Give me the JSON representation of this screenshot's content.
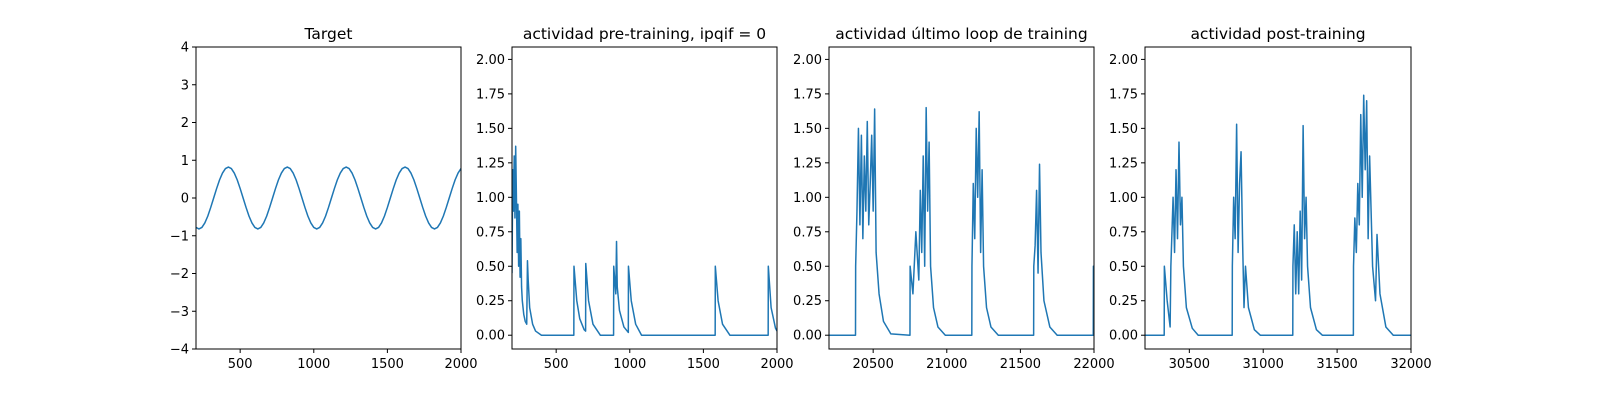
{
  "chart_data": [
    {
      "type": "line",
      "title": "Target",
      "color": "#1f77b4",
      "x": [
        200,
        220,
        240,
        260,
        280,
        300,
        320,
        340,
        360,
        380,
        400,
        420,
        440,
        460,
        480,
        500,
        520,
        540,
        560,
        580,
        600,
        620,
        640,
        660,
        680,
        700,
        720,
        740,
        760,
        780,
        800,
        820,
        840,
        860,
        880,
        900,
        920,
        940,
        960,
        980,
        1000,
        1020,
        1040,
        1060,
        1080,
        1100,
        1120,
        1140,
        1160,
        1180,
        1200,
        1220,
        1240,
        1260,
        1280,
        1300,
        1320,
        1340,
        1360,
        1380,
        1400,
        1420,
        1440,
        1460,
        1480,
        1500,
        1520,
        1540,
        1560,
        1580,
        1600,
        1620,
        1640,
        1660,
        1680,
        1700,
        1720,
        1740,
        1760,
        1780,
        1800,
        1820,
        1840,
        1860,
        1880,
        1900,
        1920,
        1940,
        1960,
        1980,
        2000
      ],
      "values": [
        -0.78,
        -0.82,
        -0.78,
        -0.66,
        -0.48,
        -0.25,
        0,
        0.25,
        0.48,
        0.66,
        0.78,
        0.82,
        0.78,
        0.66,
        0.48,
        0.25,
        0,
        -0.25,
        -0.48,
        -0.66,
        -0.78,
        -0.82,
        -0.78,
        -0.66,
        -0.48,
        -0.25,
        0,
        0.25,
        0.48,
        0.66,
        0.78,
        0.82,
        0.78,
        0.66,
        0.48,
        0.25,
        0,
        -0.25,
        -0.48,
        -0.66,
        -0.78,
        -0.82,
        -0.78,
        -0.66,
        -0.48,
        -0.25,
        0,
        0.25,
        0.48,
        0.66,
        0.78,
        0.82,
        0.78,
        0.66,
        0.48,
        0.25,
        0,
        -0.25,
        -0.48,
        -0.66,
        -0.78,
        -0.82,
        -0.78,
        -0.66,
        -0.48,
        -0.25,
        0,
        0.25,
        0.48,
        0.66,
        0.78,
        0.82,
        0.78,
        0.66,
        0.48,
        0.25,
        0,
        -0.25,
        -0.48,
        -0.66,
        -0.78,
        -0.82,
        -0.78,
        -0.66,
        -0.48,
        -0.25,
        0,
        0.25,
        0.48,
        0.66,
        0.78
      ],
      "xlim": [
        200,
        2000
      ],
      "xticks": [
        500,
        1000,
        1500,
        2000
      ],
      "ylim": [
        -4,
        4
      ],
      "yticks": [
        {
          "value": -4,
          "label": "−4"
        },
        {
          "value": -3,
          "label": "−3"
        },
        {
          "value": -2,
          "label": "−2"
        },
        {
          "value": -1,
          "label": "−1"
        },
        0,
        1,
        2,
        3,
        4
      ]
    },
    {
      "type": "line",
      "title": "actividad pre-training, ipqif = 0",
      "color": "#1f77b4",
      "x": [
        200,
        205,
        210,
        215,
        220,
        225,
        230,
        235,
        240,
        245,
        250,
        255,
        260,
        265,
        270,
        280,
        290,
        300,
        305,
        310,
        320,
        340,
        360,
        400,
        620,
        621,
        640,
        660,
        690,
        700,
        701,
        720,
        750,
        800,
        890,
        891,
        905,
        910,
        915,
        930,
        960,
        990,
        991,
        1010,
        1040,
        1080,
        1580,
        1581,
        1600,
        1630,
        1680,
        1940,
        1941,
        1960,
        1990,
        2000
      ],
      "values": [
        0.45,
        1.2,
        0.9,
        1.3,
        0.85,
        1.37,
        1.0,
        0.6,
        0.95,
        0.5,
        0.9,
        0.42,
        0.7,
        0.35,
        0.25,
        0.15,
        0.1,
        0.08,
        0.54,
        0.4,
        0.2,
        0.08,
        0.03,
        0,
        0,
        0.5,
        0.25,
        0.12,
        0.04,
        0.03,
        0.52,
        0.25,
        0.08,
        0,
        0,
        0.5,
        0.3,
        0.68,
        0.35,
        0.18,
        0.06,
        0.02,
        0.5,
        0.25,
        0.08,
        0,
        0,
        0.5,
        0.25,
        0.08,
        0,
        0,
        0.5,
        0.2,
        0.05,
        0.03
      ],
      "xlim": [
        200,
        2000
      ],
      "xticks": [
        500,
        1000,
        1500,
        2000
      ],
      "ylim": [
        -0.1,
        2.09
      ],
      "yticks": [
        {
          "value": 0,
          "label": "0.00"
        },
        0.25,
        {
          "value": 0.5,
          "label": "0.50"
        },
        0.75,
        {
          "value": 1,
          "label": "1.00"
        },
        1.25,
        {
          "value": 1.5,
          "label": "1.50"
        },
        1.75,
        {
          "value": 2,
          "label": "2.00"
        }
      ]
    },
    {
      "type": "line",
      "title": "actividad último loop de training",
      "color": "#1f77b4",
      "x": [
        20200,
        20380,
        20381,
        20390,
        20400,
        20410,
        20420,
        20430,
        20440,
        20450,
        20460,
        20470,
        20480,
        20490,
        20500,
        20510,
        20520,
        20540,
        20570,
        20620,
        20750,
        20751,
        20770,
        20790,
        20810,
        20820,
        20830,
        20840,
        20850,
        20860,
        20870,
        20880,
        20890,
        20910,
        20940,
        20990,
        21170,
        21171,
        21180,
        21190,
        21200,
        21210,
        21220,
        21230,
        21240,
        21250,
        21270,
        21300,
        21350,
        21590,
        21591,
        21600,
        21610,
        21620,
        21630,
        21640,
        21660,
        21700,
        21750,
        21995,
        21996,
        22000
      ],
      "values": [
        0,
        0,
        0.5,
        0.9,
        1.5,
        0.8,
        1.45,
        0.7,
        1.3,
        0.9,
        1.55,
        0.8,
        1.1,
        1.45,
        0.9,
        1.64,
        0.6,
        0.3,
        0.1,
        0.01,
        0,
        0.5,
        0.3,
        0.75,
        0.4,
        1.05,
        0.6,
        1.3,
        0.5,
        1.65,
        0.9,
        1.4,
        0.5,
        0.2,
        0.06,
        0,
        0,
        0.5,
        1.1,
        0.7,
        1.5,
        1.0,
        1.62,
        0.6,
        1.2,
        0.5,
        0.2,
        0.06,
        0,
        0,
        0.5,
        0.65,
        1.05,
        0.45,
        1.24,
        0.6,
        0.25,
        0.06,
        0,
        0,
        0.5,
        0.3
      ],
      "xlim": [
        20200,
        22000
      ],
      "xticks": [
        20500,
        21000,
        21500,
        22000
      ],
      "ylim": [
        -0.1,
        2.09
      ],
      "yticks": [
        {
          "value": 0,
          "label": "0.00"
        },
        0.25,
        {
          "value": 0.5,
          "label": "0.50"
        },
        0.75,
        {
          "value": 1,
          "label": "1.00"
        },
        1.25,
        {
          "value": 1.5,
          "label": "1.50"
        },
        1.75,
        {
          "value": 2,
          "label": "2.00"
        }
      ]
    },
    {
      "type": "line",
      "title": "actividad post-training",
      "color": "#1f77b4",
      "x": [
        30200,
        30330,
        30331,
        30350,
        30370,
        30375,
        30390,
        30400,
        30410,
        30420,
        30430,
        30440,
        30450,
        30460,
        30480,
        30520,
        30560,
        30790,
        30791,
        30800,
        30810,
        30820,
        30830,
        30840,
        30850,
        30860,
        30870,
        30880,
        30900,
        30940,
        30980,
        31200,
        31201,
        31210,
        31220,
        31230,
        31240,
        31250,
        31260,
        31270,
        31280,
        31290,
        31300,
        31320,
        31360,
        31400,
        31610,
        31611,
        31620,
        31630,
        31640,
        31650,
        31660,
        31670,
        31680,
        31690,
        31700,
        31710,
        31720,
        31740,
        31760,
        31770,
        31790,
        31830,
        31880,
        32000
      ],
      "values": [
        0,
        0,
        0.5,
        0.25,
        0.06,
        0.5,
        1.0,
        0.6,
        1.2,
        0.7,
        1.4,
        0.8,
        1.0,
        0.5,
        0.2,
        0.05,
        0,
        0,
        0.5,
        1.0,
        0.7,
        1.53,
        0.6,
        1.1,
        1.33,
        0.7,
        0.2,
        0.5,
        0.2,
        0.04,
        0,
        0,
        0.5,
        0.8,
        0.3,
        0.75,
        0.3,
        0.9,
        0.4,
        1.52,
        0.7,
        1.0,
        0.5,
        0.2,
        0.04,
        0,
        0,
        0.5,
        0.85,
        0.6,
        1.1,
        0.8,
        1.6,
        1.0,
        1.74,
        1.2,
        1.7,
        0.7,
        1.3,
        0.5,
        0.25,
        0.73,
        0.3,
        0.06,
        0,
        0
      ],
      "xlim": [
        30200,
        32000
      ],
      "xticks": [
        30500,
        31000,
        31500,
        32000
      ],
      "ylim": [
        -0.1,
        2.09
      ],
      "yticks": [
        {
          "value": 0,
          "label": "0.00"
        },
        0.25,
        {
          "value": 0.5,
          "label": "0.50"
        },
        0.75,
        {
          "value": 1,
          "label": "1.00"
        },
        1.25,
        {
          "value": 1.5,
          "label": "1.50"
        },
        1.75,
        {
          "value": 2,
          "label": "2.00"
        }
      ]
    }
  ]
}
